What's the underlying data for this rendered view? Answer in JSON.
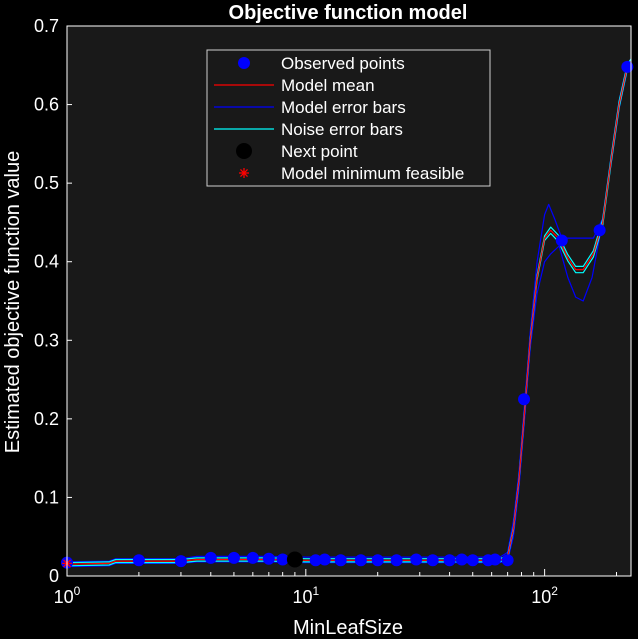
{
  "chart_data": {
    "type": "line",
    "title": "Objective function model",
    "xlabel": "MinLeafSize",
    "ylabel": "Estimated objective function value",
    "xscale": "log",
    "xlim": [
      1,
      230
    ],
    "ylim": [
      0,
      0.7
    ],
    "grid": false,
    "legend_position": "top-center",
    "x_tick_labels": [
      {
        "value": 1,
        "base": "10",
        "exp": "0"
      },
      {
        "value": 10,
        "base": "10",
        "exp": "1"
      },
      {
        "value": 100,
        "base": "10",
        "exp": "2"
      }
    ],
    "y_ticks": [
      0,
      0.1,
      0.2,
      0.3,
      0.4,
      0.5,
      0.6,
      0.7
    ],
    "y_tick_labels": [
      "0",
      "0.1",
      "0.2",
      "0.3",
      "0.4",
      "0.5",
      "0.6",
      "0.7"
    ],
    "legend": [
      {
        "key": "observed",
        "label": "Observed points",
        "marker": "dot",
        "color": "#0000ff"
      },
      {
        "key": "mean",
        "label": "Model mean",
        "marker": "line",
        "color": "#ff0000"
      },
      {
        "key": "model_err",
        "label": "Model error bars",
        "marker": "line",
        "color": "#0000ff"
      },
      {
        "key": "noise_err",
        "label": "Noise error bars",
        "marker": "line",
        "color": "#00ffff"
      },
      {
        "key": "next",
        "label": "Next point",
        "marker": "dot",
        "color": "#000000"
      },
      {
        "key": "minfeas",
        "label": "Model minimum feasible",
        "marker": "star",
        "color": "#ff0000"
      }
    ],
    "observed_points": [
      {
        "x": 1,
        "y": 0.017
      },
      {
        "x": 2,
        "y": 0.02
      },
      {
        "x": 3,
        "y": 0.019
      },
      {
        "x": 4,
        "y": 0.023
      },
      {
        "x": 5,
        "y": 0.023
      },
      {
        "x": 6,
        "y": 0.023
      },
      {
        "x": 7,
        "y": 0.022
      },
      {
        "x": 8,
        "y": 0.021
      },
      {
        "x": 11,
        "y": 0.02
      },
      {
        "x": 12,
        "y": 0.021
      },
      {
        "x": 14,
        "y": 0.02
      },
      {
        "x": 17,
        "y": 0.02
      },
      {
        "x": 20,
        "y": 0.02
      },
      {
        "x": 24,
        "y": 0.02
      },
      {
        "x": 29,
        "y": 0.021
      },
      {
        "x": 34,
        "y": 0.02
      },
      {
        "x": 40,
        "y": 0.02
      },
      {
        "x": 45,
        "y": 0.021
      },
      {
        "x": 50,
        "y": 0.02
      },
      {
        "x": 58,
        "y": 0.02
      },
      {
        "x": 62,
        "y": 0.021
      },
      {
        "x": 70,
        "y": 0.02
      },
      {
        "x": 82,
        "y": 0.225
      },
      {
        "x": 118,
        "y": 0.427
      },
      {
        "x": 170,
        "y": 0.44
      },
      {
        "x": 222,
        "y": 0.648
      }
    ],
    "next_point": {
      "x": 9,
      "y": 0.021
    },
    "model_min_feasible": {
      "x": 1,
      "y": 0.016
    },
    "model_mean": [
      [
        1,
        0.015
      ],
      [
        1.5,
        0.016
      ],
      [
        1.6,
        0.019
      ],
      [
        3,
        0.019
      ],
      [
        3.5,
        0.021
      ],
      [
        7,
        0.021
      ],
      [
        10,
        0.02
      ],
      [
        20,
        0.02
      ],
      [
        40,
        0.02
      ],
      [
        65,
        0.02
      ],
      [
        70,
        0.024
      ],
      [
        74,
        0.06
      ],
      [
        78,
        0.12
      ],
      [
        82,
        0.2
      ],
      [
        87,
        0.3
      ],
      [
        93,
        0.38
      ],
      [
        100,
        0.43
      ],
      [
        106,
        0.44
      ],
      [
        114,
        0.43
      ],
      [
        125,
        0.405
      ],
      [
        135,
        0.39
      ],
      [
        145,
        0.39
      ],
      [
        160,
        0.41
      ],
      [
        175,
        0.45
      ],
      [
        190,
        0.53
      ],
      [
        205,
        0.6
      ],
      [
        222,
        0.648
      ],
      [
        230,
        0.655
      ]
    ],
    "model_err_upper": [
      [
        1,
        0.018
      ],
      [
        1.5,
        0.019
      ],
      [
        1.6,
        0.022
      ],
      [
        3,
        0.022
      ],
      [
        3.5,
        0.025
      ],
      [
        7,
        0.025
      ],
      [
        10,
        0.024
      ],
      [
        40,
        0.024
      ],
      [
        65,
        0.024
      ],
      [
        70,
        0.03
      ],
      [
        74,
        0.07
      ],
      [
        78,
        0.13
      ],
      [
        82,
        0.21
      ],
      [
        87,
        0.31
      ],
      [
        93,
        0.4
      ],
      [
        100,
        0.46
      ],
      [
        104,
        0.473
      ],
      [
        110,
        0.455
      ],
      [
        118,
        0.43
      ],
      [
        130,
        0.43
      ],
      [
        150,
        0.43
      ],
      [
        160,
        0.43
      ],
      [
        175,
        0.455
      ],
      [
        190,
        0.535
      ],
      [
        205,
        0.605
      ],
      [
        222,
        0.652
      ],
      [
        230,
        0.658
      ]
    ],
    "model_err_lower": [
      [
        1,
        0.012
      ],
      [
        1.5,
        0.013
      ],
      [
        1.6,
        0.016
      ],
      [
        3,
        0.016
      ],
      [
        3.5,
        0.018
      ],
      [
        7,
        0.018
      ],
      [
        10,
        0.017
      ],
      [
        40,
        0.017
      ],
      [
        65,
        0.017
      ],
      [
        70,
        0.02
      ],
      [
        74,
        0.05
      ],
      [
        78,
        0.11
      ],
      [
        82,
        0.19
      ],
      [
        87,
        0.29
      ],
      [
        93,
        0.36
      ],
      [
        100,
        0.4
      ],
      [
        106,
        0.41
      ],
      [
        115,
        0.42
      ],
      [
        125,
        0.38
      ],
      [
        135,
        0.355
      ],
      [
        145,
        0.35
      ],
      [
        158,
        0.38
      ],
      [
        172,
        0.44
      ],
      [
        190,
        0.525
      ],
      [
        205,
        0.595
      ],
      [
        222,
        0.644
      ],
      [
        230,
        0.652
      ]
    ],
    "noise_err_upper": [
      [
        1,
        0.017
      ],
      [
        1.5,
        0.018
      ],
      [
        1.6,
        0.021
      ],
      [
        3,
        0.021
      ],
      [
        3.5,
        0.023
      ],
      [
        7,
        0.023
      ],
      [
        10,
        0.022
      ],
      [
        65,
        0.022
      ],
      [
        70,
        0.026
      ],
      [
        74,
        0.062
      ],
      [
        78,
        0.122
      ],
      [
        82,
        0.202
      ],
      [
        87,
        0.302
      ],
      [
        93,
        0.383
      ],
      [
        100,
        0.433
      ],
      [
        106,
        0.444
      ],
      [
        114,
        0.434
      ],
      [
        125,
        0.409
      ],
      [
        135,
        0.394
      ],
      [
        145,
        0.394
      ],
      [
        160,
        0.414
      ],
      [
        175,
        0.454
      ],
      [
        190,
        0.534
      ],
      [
        205,
        0.604
      ],
      [
        222,
        0.651
      ],
      [
        230,
        0.658
      ]
    ],
    "noise_err_lower": [
      [
        1,
        0.013
      ],
      [
        1.5,
        0.014
      ],
      [
        1.6,
        0.017
      ],
      [
        3,
        0.017
      ],
      [
        3.5,
        0.019
      ],
      [
        7,
        0.019
      ],
      [
        10,
        0.018
      ],
      [
        65,
        0.018
      ],
      [
        70,
        0.022
      ],
      [
        74,
        0.058
      ],
      [
        78,
        0.118
      ],
      [
        82,
        0.198
      ],
      [
        87,
        0.298
      ],
      [
        93,
        0.377
      ],
      [
        100,
        0.427
      ],
      [
        106,
        0.436
      ],
      [
        114,
        0.426
      ],
      [
        125,
        0.401
      ],
      [
        135,
        0.386
      ],
      [
        145,
        0.386
      ],
      [
        160,
        0.406
      ],
      [
        175,
        0.446
      ],
      [
        190,
        0.526
      ],
      [
        205,
        0.596
      ],
      [
        222,
        0.645
      ],
      [
        230,
        0.652
      ]
    ]
  }
}
